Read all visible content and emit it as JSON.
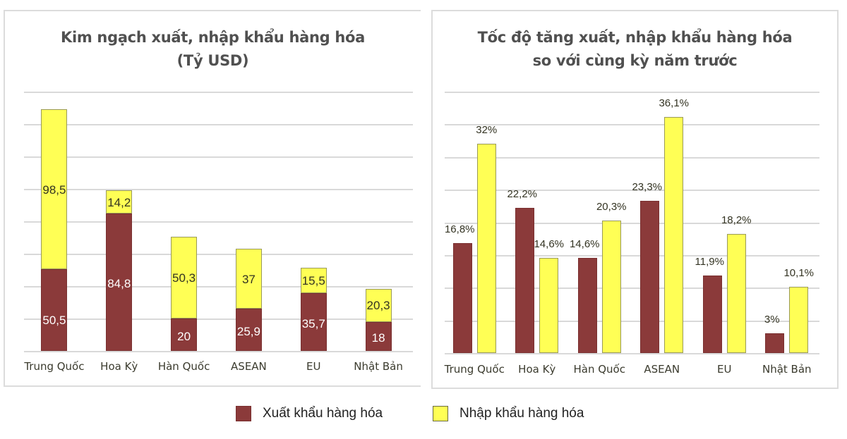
{
  "legend": {
    "export_label": "Xuất khẩu hàng hóa",
    "import_label": "Nhập khẩu hàng hóa",
    "export_color": "#8b3a3a",
    "import_color": "#ffff55"
  },
  "left_chart": {
    "title_line1": "Kim ngạch xuất, nhập khẩu hàng hóa",
    "title_line2": "(Tỷ USD)",
    "categories": [
      "Trung Quốc",
      "Hoa Kỳ",
      "Hàn Quốc",
      "ASEAN",
      "EU",
      "Nhật Bản"
    ],
    "export_labels": [
      "50,5",
      "84,8",
      "20",
      "25,9",
      "35,7",
      "18"
    ],
    "import_labels": [
      "98,5",
      "14,2",
      "50,3",
      "37",
      "15,5",
      "20,3"
    ]
  },
  "right_chart": {
    "title_line1": "Tốc độ tăng xuất, nhập khẩu hàng hóa",
    "title_line2": "so với cùng kỳ năm trước",
    "categories": [
      "Trung Quốc",
      "Hoa Kỳ",
      "Hàn Quốc",
      "ASEAN",
      "EU",
      "Nhật Bản"
    ],
    "export_labels": [
      "16,8%",
      "22,2%",
      "14,6%",
      "23,3%",
      "11,9%",
      "3%"
    ],
    "import_labels": [
      "32%",
      "14,6%",
      "20,3%",
      "36,1%",
      "18,2%",
      "10,1%"
    ]
  },
  "chart_data": [
    {
      "type": "bar",
      "stacked": true,
      "title": "Kim ngạch xuất, nhập khẩu hàng hóa (Tỷ USD)",
      "categories": [
        "Trung Quốc",
        "Hoa Kỳ",
        "Hàn Quốc",
        "ASEAN",
        "EU",
        "Nhật Bản"
      ],
      "series": [
        {
          "name": "Xuất khẩu hàng hóa",
          "color": "#8b3a3a",
          "values": [
            50.5,
            84.8,
            20,
            25.9,
            35.7,
            18
          ]
        },
        {
          "name": "Nhập khẩu hàng hóa",
          "color": "#ffff55",
          "values": [
            98.5,
            14.2,
            50.3,
            37,
            15.5,
            20.3
          ]
        }
      ],
      "xlabel": "",
      "ylabel": "",
      "ylim": [
        0,
        160
      ],
      "grid": true,
      "legend_position": "bottom"
    },
    {
      "type": "bar",
      "stacked": false,
      "title": "Tốc độ tăng xuất, nhập khẩu hàng hóa so với cùng kỳ năm trước",
      "categories": [
        "Trung Quốc",
        "Hoa Kỳ",
        "Hàn Quốc",
        "ASEAN",
        "EU",
        "Nhật Bản"
      ],
      "series": [
        {
          "name": "Xuất khẩu hàng hóa",
          "color": "#8b3a3a",
          "values": [
            16.8,
            22.2,
            14.6,
            23.3,
            11.9,
            3
          ]
        },
        {
          "name": "Nhập khẩu hàng hóa",
          "color": "#ffff55",
          "values": [
            32,
            14.6,
            20.3,
            36.1,
            18.2,
            10.1
          ]
        }
      ],
      "unit": "%",
      "xlabel": "",
      "ylabel": "",
      "ylim": [
        0,
        40
      ],
      "grid": true,
      "legend_position": "bottom"
    }
  ]
}
